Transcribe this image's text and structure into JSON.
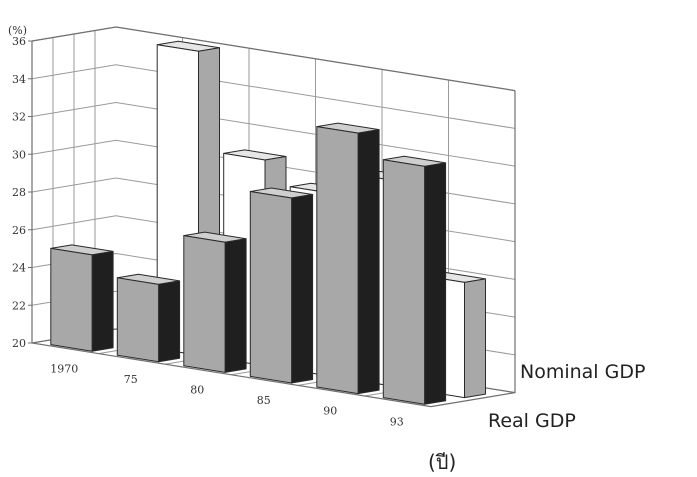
{
  "chart_data": {
    "type": "bar",
    "subtype": "3d-grouped-bar",
    "categories": [
      "1970",
      "75",
      "80",
      "85",
      "90",
      "93"
    ],
    "series": [
      {
        "name": "Nominal GDP",
        "values": [
          19.5,
          36.1,
          30.9,
          29.7,
          30.9,
          26.1
        ]
      },
      {
        "name": "Real GDP",
        "values": [
          25.1,
          24.1,
          26.9,
          29.8,
          33.8,
          32.6
        ]
      }
    ],
    "ylabel": "(%)",
    "xlabel": "(ปี)",
    "ylim": [
      20,
      36
    ],
    "yticks": [
      "20",
      "22",
      "24",
      "26",
      "28",
      "30",
      "32",
      "34",
      "36"
    ],
    "grid": true,
    "legend": "series labels at right, in front of rows",
    "colors": {
      "nominal_front": "#ffffff",
      "nominal_side": "#a8a8a8",
      "nominal_top": "#e6e6e6",
      "real_front": "#a8a8a8",
      "real_side": "#1f1f1f",
      "real_top": "#cfcfcf",
      "edge": "#2a2a2a"
    }
  }
}
